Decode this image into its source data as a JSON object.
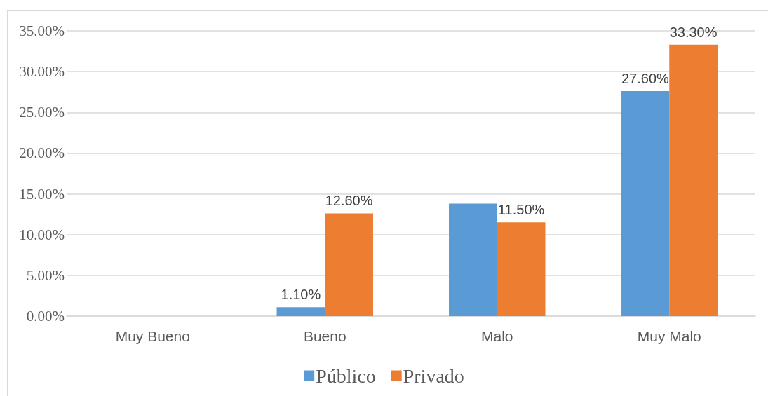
{
  "chart_data": {
    "type": "bar",
    "categories": [
      "Muy Bueno",
      "Bueno",
      "Malo",
      "Muy Malo"
    ],
    "series": [
      {
        "name": "Público",
        "color": "#5b9bd5",
        "values": [
          0,
          1.1,
          13.8,
          27.6
        ],
        "value_labels": [
          null,
          "1.10%",
          null,
          "27.60%"
        ]
      },
      {
        "name": "Privado",
        "color": "#ed7d31",
        "values": [
          0,
          12.6,
          11.5,
          33.3
        ],
        "value_labels": [
          null,
          "12.60%",
          "11.50%",
          "33.30%"
        ]
      }
    ],
    "ylim": [
      0,
      35
    ],
    "yticks": [
      {
        "value": 0,
        "label": "0.00%"
      },
      {
        "value": 5,
        "label": "5.00%"
      },
      {
        "value": 10,
        "label": "10.00%"
      },
      {
        "value": 15,
        "label": "15.00%"
      },
      {
        "value": 20,
        "label": "20.00%"
      },
      {
        "value": 25,
        "label": "25.00%"
      },
      {
        "value": 30,
        "label": "30.00%"
      },
      {
        "value": 35,
        "label": "35.00%"
      }
    ],
    "grid": "y",
    "legend": "bottom"
  }
}
